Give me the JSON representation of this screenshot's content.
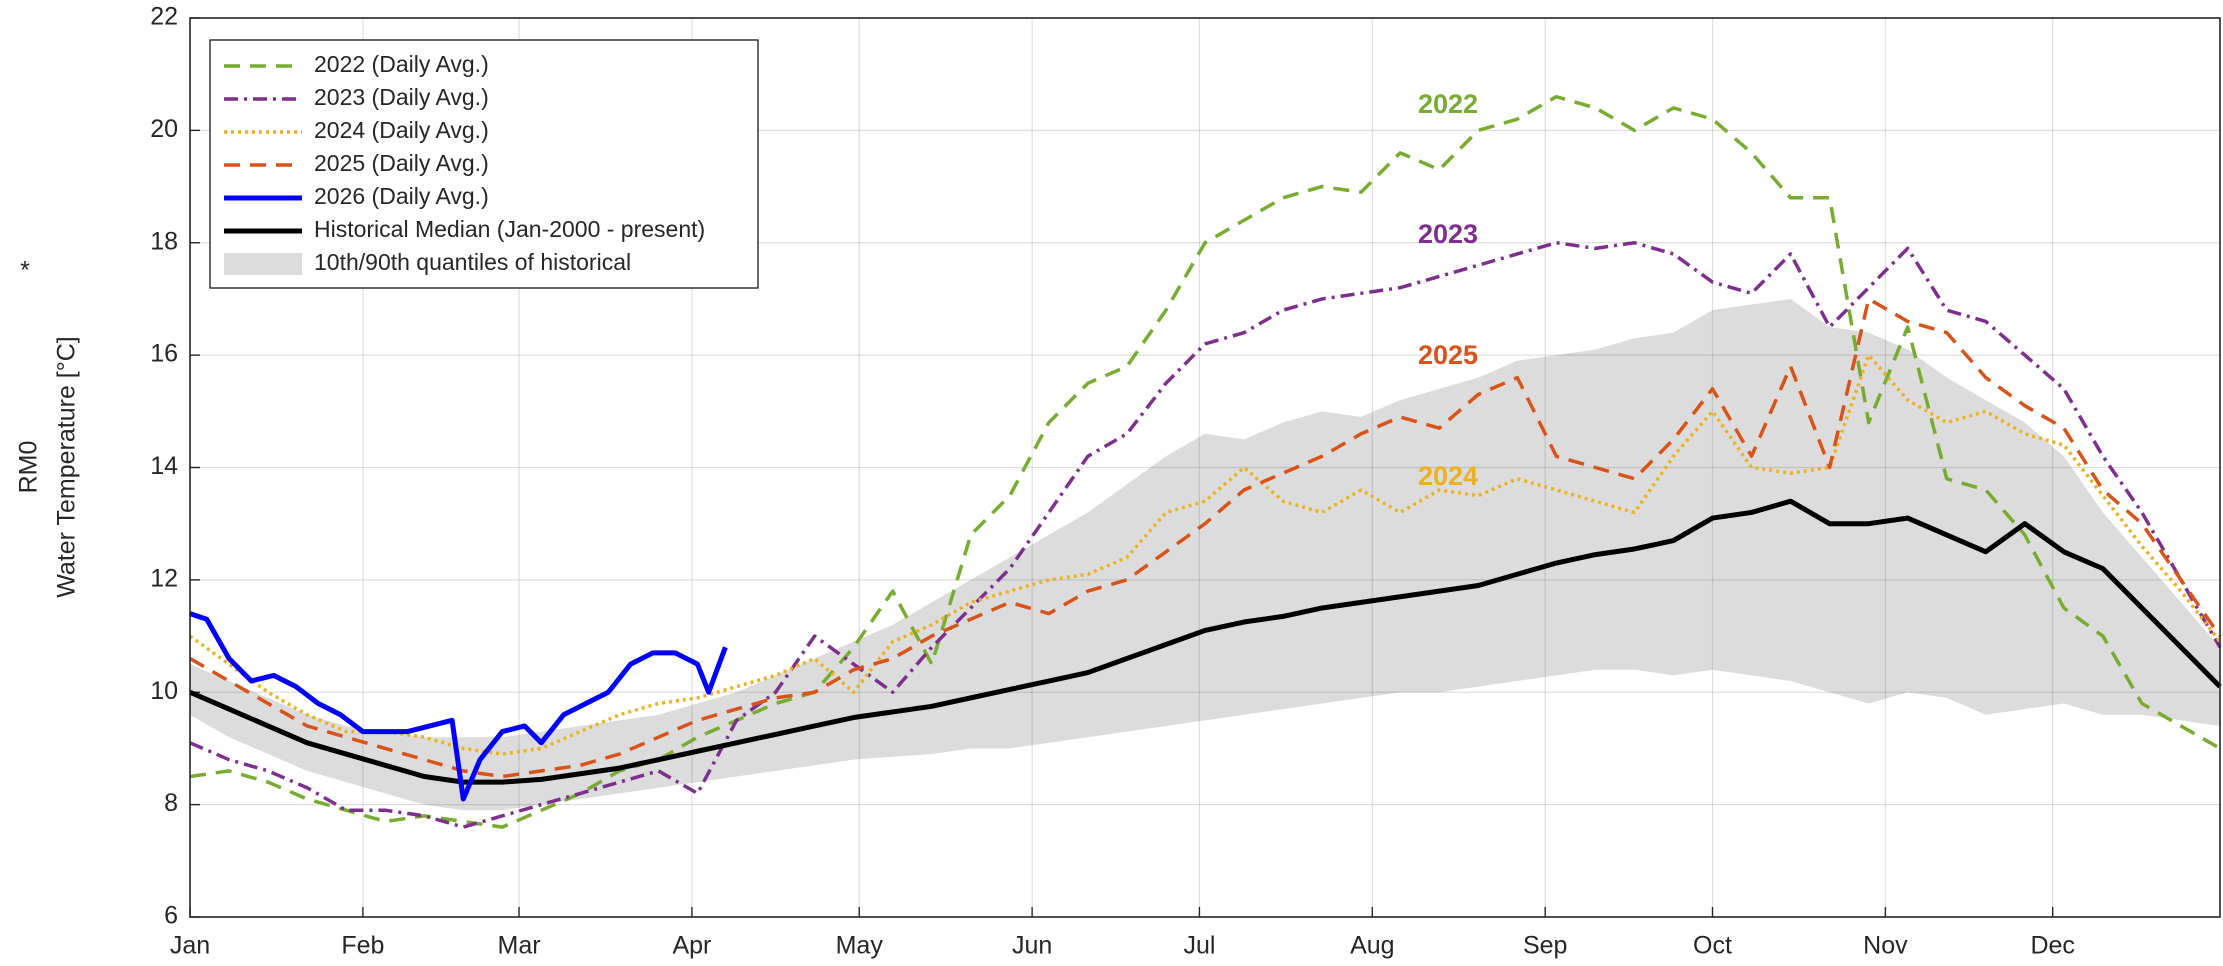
{
  "chart_data": {
    "type": "line",
    "y_label_note": "*",
    "y_label_lines": [
      "RM0",
      "Water Temperature [°C]"
    ],
    "xlim": [
      1,
      365
    ],
    "xticks": [
      {
        "value": 1,
        "label": "Jan"
      },
      {
        "value": 32,
        "label": "Feb"
      },
      {
        "value": 60,
        "label": "Mar"
      },
      {
        "value": 91,
        "label": "Apr"
      },
      {
        "value": 121,
        "label": "May"
      },
      {
        "value": 152,
        "label": "Jun"
      },
      {
        "value": 182,
        "label": "Jul"
      },
      {
        "value": 213,
        "label": "Aug"
      },
      {
        "value": 244,
        "label": "Sep"
      },
      {
        "value": 274,
        "label": "Oct"
      },
      {
        "value": 305,
        "label": "Nov"
      },
      {
        "value": 335,
        "label": "Dec"
      }
    ],
    "ylim": [
      6,
      22
    ],
    "yticks": [
      6,
      8,
      10,
      12,
      14,
      16,
      18,
      20,
      22
    ],
    "grid": true,
    "legend": "upper left",
    "x": [
      1,
      8,
      15,
      22,
      29,
      36,
      43,
      50,
      57,
      64,
      71,
      78,
      85,
      92,
      99,
      106,
      113,
      120,
      127,
      134,
      141,
      148,
      155,
      162,
      169,
      176,
      183,
      190,
      197,
      204,
      211,
      218,
      225,
      232,
      239,
      246,
      253,
      260,
      267,
      274,
      281,
      288,
      295,
      302,
      309,
      316,
      323,
      330,
      337,
      344,
      351,
      358,
      365
    ],
    "band": {
      "name": "10th/90th quantiles of historical",
      "color": "#dcdcdc",
      "lower": [
        9.6,
        9.2,
        8.9,
        8.6,
        8.4,
        8.2,
        8.0,
        7.9,
        7.9,
        8.0,
        8.1,
        8.2,
        8.3,
        8.4,
        8.5,
        8.6,
        8.7,
        8.8,
        8.85,
        8.9,
        9.0,
        9.0,
        9.1,
        9.2,
        9.3,
        9.4,
        9.5,
        9.6,
        9.7,
        9.8,
        9.9,
        10.0,
        10.0,
        10.1,
        10.2,
        10.3,
        10.4,
        10.4,
        10.3,
        10.4,
        10.3,
        10.2,
        10.0,
        9.8,
        10.0,
        9.9,
        9.6,
        9.7,
        9.8,
        9.6,
        9.6,
        9.5,
        9.4
      ],
      "upper": [
        10.5,
        10.2,
        9.9,
        9.6,
        9.4,
        9.3,
        9.2,
        9.2,
        9.2,
        9.3,
        9.4,
        9.5,
        9.6,
        9.8,
        10.0,
        10.3,
        10.6,
        10.9,
        11.2,
        11.6,
        12.0,
        12.4,
        12.8,
        13.2,
        13.7,
        14.2,
        14.6,
        14.5,
        14.8,
        15.0,
        14.9,
        15.2,
        15.4,
        15.6,
        15.9,
        16.0,
        16.1,
        16.3,
        16.4,
        16.8,
        16.9,
        17.0,
        16.5,
        16.4,
        16.1,
        15.6,
        15.2,
        14.8,
        14.2,
        13.2,
        12.4,
        11.6,
        10.8
      ]
    },
    "series": [
      {
        "name": "2022 (Daily Avg.)",
        "color": "#77ac30",
        "style": "dashed",
        "values": [
          8.5,
          8.6,
          8.4,
          8.1,
          7.9,
          7.7,
          7.8,
          7.7,
          7.6,
          7.9,
          8.2,
          8.6,
          8.8,
          9.2,
          9.5,
          9.8,
          10.0,
          10.8,
          11.8,
          10.5,
          12.8,
          13.5,
          14.8,
          15.5,
          15.8,
          16.8,
          18.0,
          18.4,
          18.8,
          19.0,
          18.9,
          19.6,
          19.3,
          20.0,
          20.2,
          20.6,
          20.4,
          20.0,
          20.4,
          20.2,
          19.6,
          18.8,
          18.8,
          14.8,
          16.5,
          13.8,
          13.6,
          12.8,
          11.5,
          11.0,
          9.8,
          9.4,
          9.0
        ]
      },
      {
        "name": "2023 (Daily Avg.)",
        "color": "#7e2f8e",
        "style": "dashdot",
        "values": [
          9.1,
          8.8,
          8.6,
          8.3,
          7.9,
          7.9,
          7.8,
          7.6,
          7.8,
          8.0,
          8.2,
          8.4,
          8.6,
          8.2,
          9.5,
          10.0,
          11.0,
          10.5,
          10.0,
          10.8,
          11.5,
          12.2,
          13.2,
          14.2,
          14.6,
          15.5,
          16.2,
          16.4,
          16.8,
          17.0,
          17.1,
          17.2,
          17.4,
          17.6,
          17.8,
          18.0,
          17.9,
          18.0,
          17.8,
          17.3,
          17.1,
          17.8,
          16.5,
          17.2,
          17.9,
          16.8,
          16.6,
          16.0,
          15.4,
          14.2,
          13.2,
          12.0,
          10.8
        ]
      },
      {
        "name": "2024 (Daily Avg.)",
        "color": "#edb120",
        "style": "dotted",
        "values": [
          11.0,
          10.5,
          10.0,
          9.6,
          9.3,
          9.3,
          9.2,
          9.0,
          8.9,
          9.0,
          9.3,
          9.6,
          9.8,
          9.9,
          10.1,
          10.3,
          10.6,
          10.0,
          10.9,
          11.2,
          11.6,
          11.8,
          12.0,
          12.1,
          12.4,
          13.2,
          13.4,
          14.0,
          13.4,
          13.2,
          13.6,
          13.2,
          13.6,
          13.5,
          13.8,
          13.6,
          13.4,
          13.2,
          14.2,
          15.0,
          14.0,
          13.9,
          14.0,
          16.0,
          15.2,
          14.8,
          15.0,
          14.6,
          14.4,
          13.5,
          12.6,
          11.8,
          10.9
        ]
      },
      {
        "name": "2025 (Daily Avg.)",
        "color": "#d95319",
        "style": "dashed",
        "values": [
          10.6,
          10.2,
          9.8,
          9.4,
          9.2,
          9.0,
          8.8,
          8.6,
          8.5,
          8.6,
          8.7,
          8.9,
          9.2,
          9.5,
          9.7,
          9.9,
          10.0,
          10.4,
          10.6,
          11.0,
          11.3,
          11.6,
          11.4,
          11.8,
          12.0,
          12.5,
          13.0,
          13.6,
          13.9,
          14.2,
          14.6,
          14.9,
          14.7,
          15.3,
          15.6,
          14.2,
          14.0,
          13.8,
          14.5,
          15.4,
          14.2,
          15.8,
          14.0,
          17.0,
          16.6,
          16.4,
          15.6,
          15.1,
          14.7,
          13.6,
          13.0,
          12.0,
          11.0
        ]
      },
      {
        "name": "2026 (Daily Avg.)",
        "color": "#0000ff",
        "style": "solid",
        "x": [
          1,
          4,
          8,
          12,
          16,
          20,
          24,
          28,
          32,
          36,
          40,
          44,
          48,
          50,
          53,
          57,
          61,
          64,
          68,
          72,
          76,
          80,
          84,
          88,
          92,
          94,
          97
        ],
        "values": [
          11.4,
          11.3,
          10.6,
          10.2,
          10.3,
          10.1,
          9.8,
          9.6,
          9.3,
          9.3,
          9.3,
          9.4,
          9.5,
          8.1,
          8.8,
          9.3,
          9.4,
          9.1,
          9.6,
          9.8,
          10.0,
          10.5,
          10.7,
          10.7,
          10.5,
          10.0,
          10.8
        ]
      },
      {
        "name": "Historical Median (Jan-2000 - present)",
        "color": "#000000",
        "style": "solid",
        "values": [
          10.0,
          9.7,
          9.4,
          9.1,
          8.9,
          8.7,
          8.5,
          8.4,
          8.4,
          8.45,
          8.55,
          8.65,
          8.8,
          8.95,
          9.1,
          9.25,
          9.4,
          9.55,
          9.65,
          9.75,
          9.9,
          10.05,
          10.2,
          10.35,
          10.6,
          10.85,
          11.1,
          11.25,
          11.35,
          11.5,
          11.6,
          11.7,
          11.8,
          11.9,
          12.1,
          12.3,
          12.45,
          12.55,
          12.7,
          13.1,
          13.2,
          13.4,
          13.0,
          13.0,
          13.1,
          12.8,
          12.5,
          13.0,
          12.5,
          12.2,
          11.5,
          10.8,
          10.1
        ]
      }
    ],
    "annotations": [
      {
        "text": "2022",
        "color": "#77ac30"
      },
      {
        "text": "2023",
        "color": "#7e2f8e"
      },
      {
        "text": "2025",
        "color": "#d95319"
      },
      {
        "text": "2024",
        "color": "#edb120"
      }
    ]
  }
}
